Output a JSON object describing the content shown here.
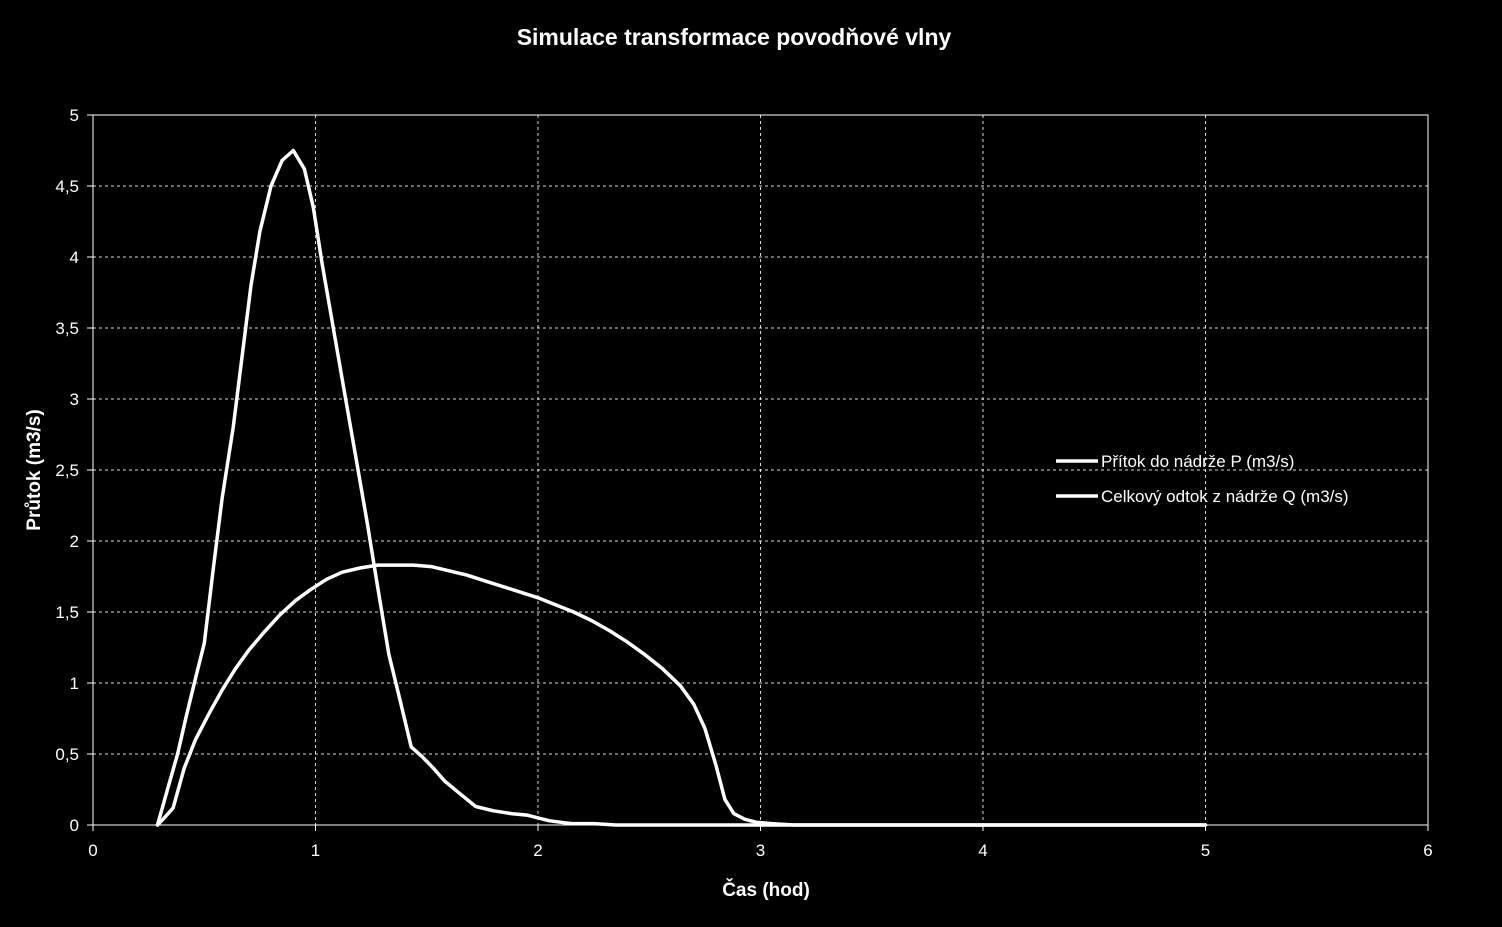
{
  "chart_data": {
    "type": "line",
    "title": "Simulace transformace povodňové vlny",
    "xlabel": "Čas (hod)",
    "ylabel": "Průtok (m3/s)",
    "xlim": [
      0,
      6
    ],
    "ylim": [
      0,
      5
    ],
    "x_ticks": [
      "0",
      "1",
      "2",
      "3",
      "4",
      "5",
      "6"
    ],
    "y_ticks": [
      "0",
      "0,5",
      "1",
      "1,5",
      "2",
      "2,5",
      "3",
      "3,5",
      "4",
      "4,5",
      "5"
    ],
    "grid": true,
    "background_color": "#000000",
    "line_color": "#ffffff",
    "legend_position": "right",
    "series": [
      {
        "name": "Přítok do nádrže P (m3/s)",
        "x": [
          0.29,
          0.34,
          0.38,
          0.42,
          0.46,
          0.5,
          0.54,
          0.58,
          0.63,
          0.67,
          0.71,
          0.75,
          0.8,
          0.85,
          0.9,
          0.95,
          0.99,
          1.03,
          1.08,
          1.13,
          1.18,
          1.23,
          1.28,
          1.33,
          1.38,
          1.43,
          1.48,
          1.53,
          1.58,
          1.65,
          1.72,
          1.8,
          1.88,
          1.95,
          2.0,
          2.05,
          2.1,
          2.15,
          2.25,
          2.35,
          2.45,
          2.6,
          3.0,
          4.0,
          5.0
        ],
        "y": [
          0.0,
          0.28,
          0.5,
          0.77,
          1.03,
          1.28,
          1.8,
          2.3,
          2.8,
          3.3,
          3.8,
          4.18,
          4.5,
          4.68,
          4.75,
          4.62,
          4.35,
          3.95,
          3.5,
          3.05,
          2.6,
          2.15,
          1.67,
          1.2,
          0.88,
          0.55,
          0.48,
          0.4,
          0.31,
          0.22,
          0.13,
          0.1,
          0.08,
          0.07,
          0.05,
          0.03,
          0.02,
          0.01,
          0.01,
          0.0,
          0.0,
          0.0,
          0.0,
          0.0,
          0.0
        ],
        "x_note": "ignored"
      },
      {
        "name": "Celkový odtok z nádrže Q (m3/s)",
        "x": [
          0.29,
          0.32,
          0.36,
          0.41,
          0.46,
          0.52,
          0.58,
          0.64,
          0.7,
          0.77,
          0.84,
          0.91,
          0.98,
          1.05,
          1.12,
          1.2,
          1.28,
          1.36,
          1.44,
          1.52,
          1.6,
          1.68,
          1.76,
          1.84,
          1.92,
          2.0,
          2.08,
          2.16,
          2.24,
          2.32,
          2.4,
          2.48,
          2.56,
          2.64,
          2.7,
          2.75,
          2.8,
          2.84,
          2.88,
          2.93,
          2.98,
          3.05,
          3.15,
          3.5,
          4.0,
          5.0
        ],
        "y": [
          0.0,
          0.05,
          0.12,
          0.4,
          0.6,
          0.78,
          0.95,
          1.1,
          1.23,
          1.36,
          1.48,
          1.58,
          1.66,
          1.73,
          1.78,
          1.81,
          1.83,
          1.83,
          1.83,
          1.82,
          1.79,
          1.76,
          1.72,
          1.68,
          1.64,
          1.6,
          1.55,
          1.5,
          1.44,
          1.37,
          1.29,
          1.2,
          1.1,
          0.98,
          0.85,
          0.68,
          0.42,
          0.18,
          0.08,
          0.04,
          0.02,
          0.01,
          0.0,
          0.0,
          0.0,
          0.0
        ]
      }
    ]
  }
}
